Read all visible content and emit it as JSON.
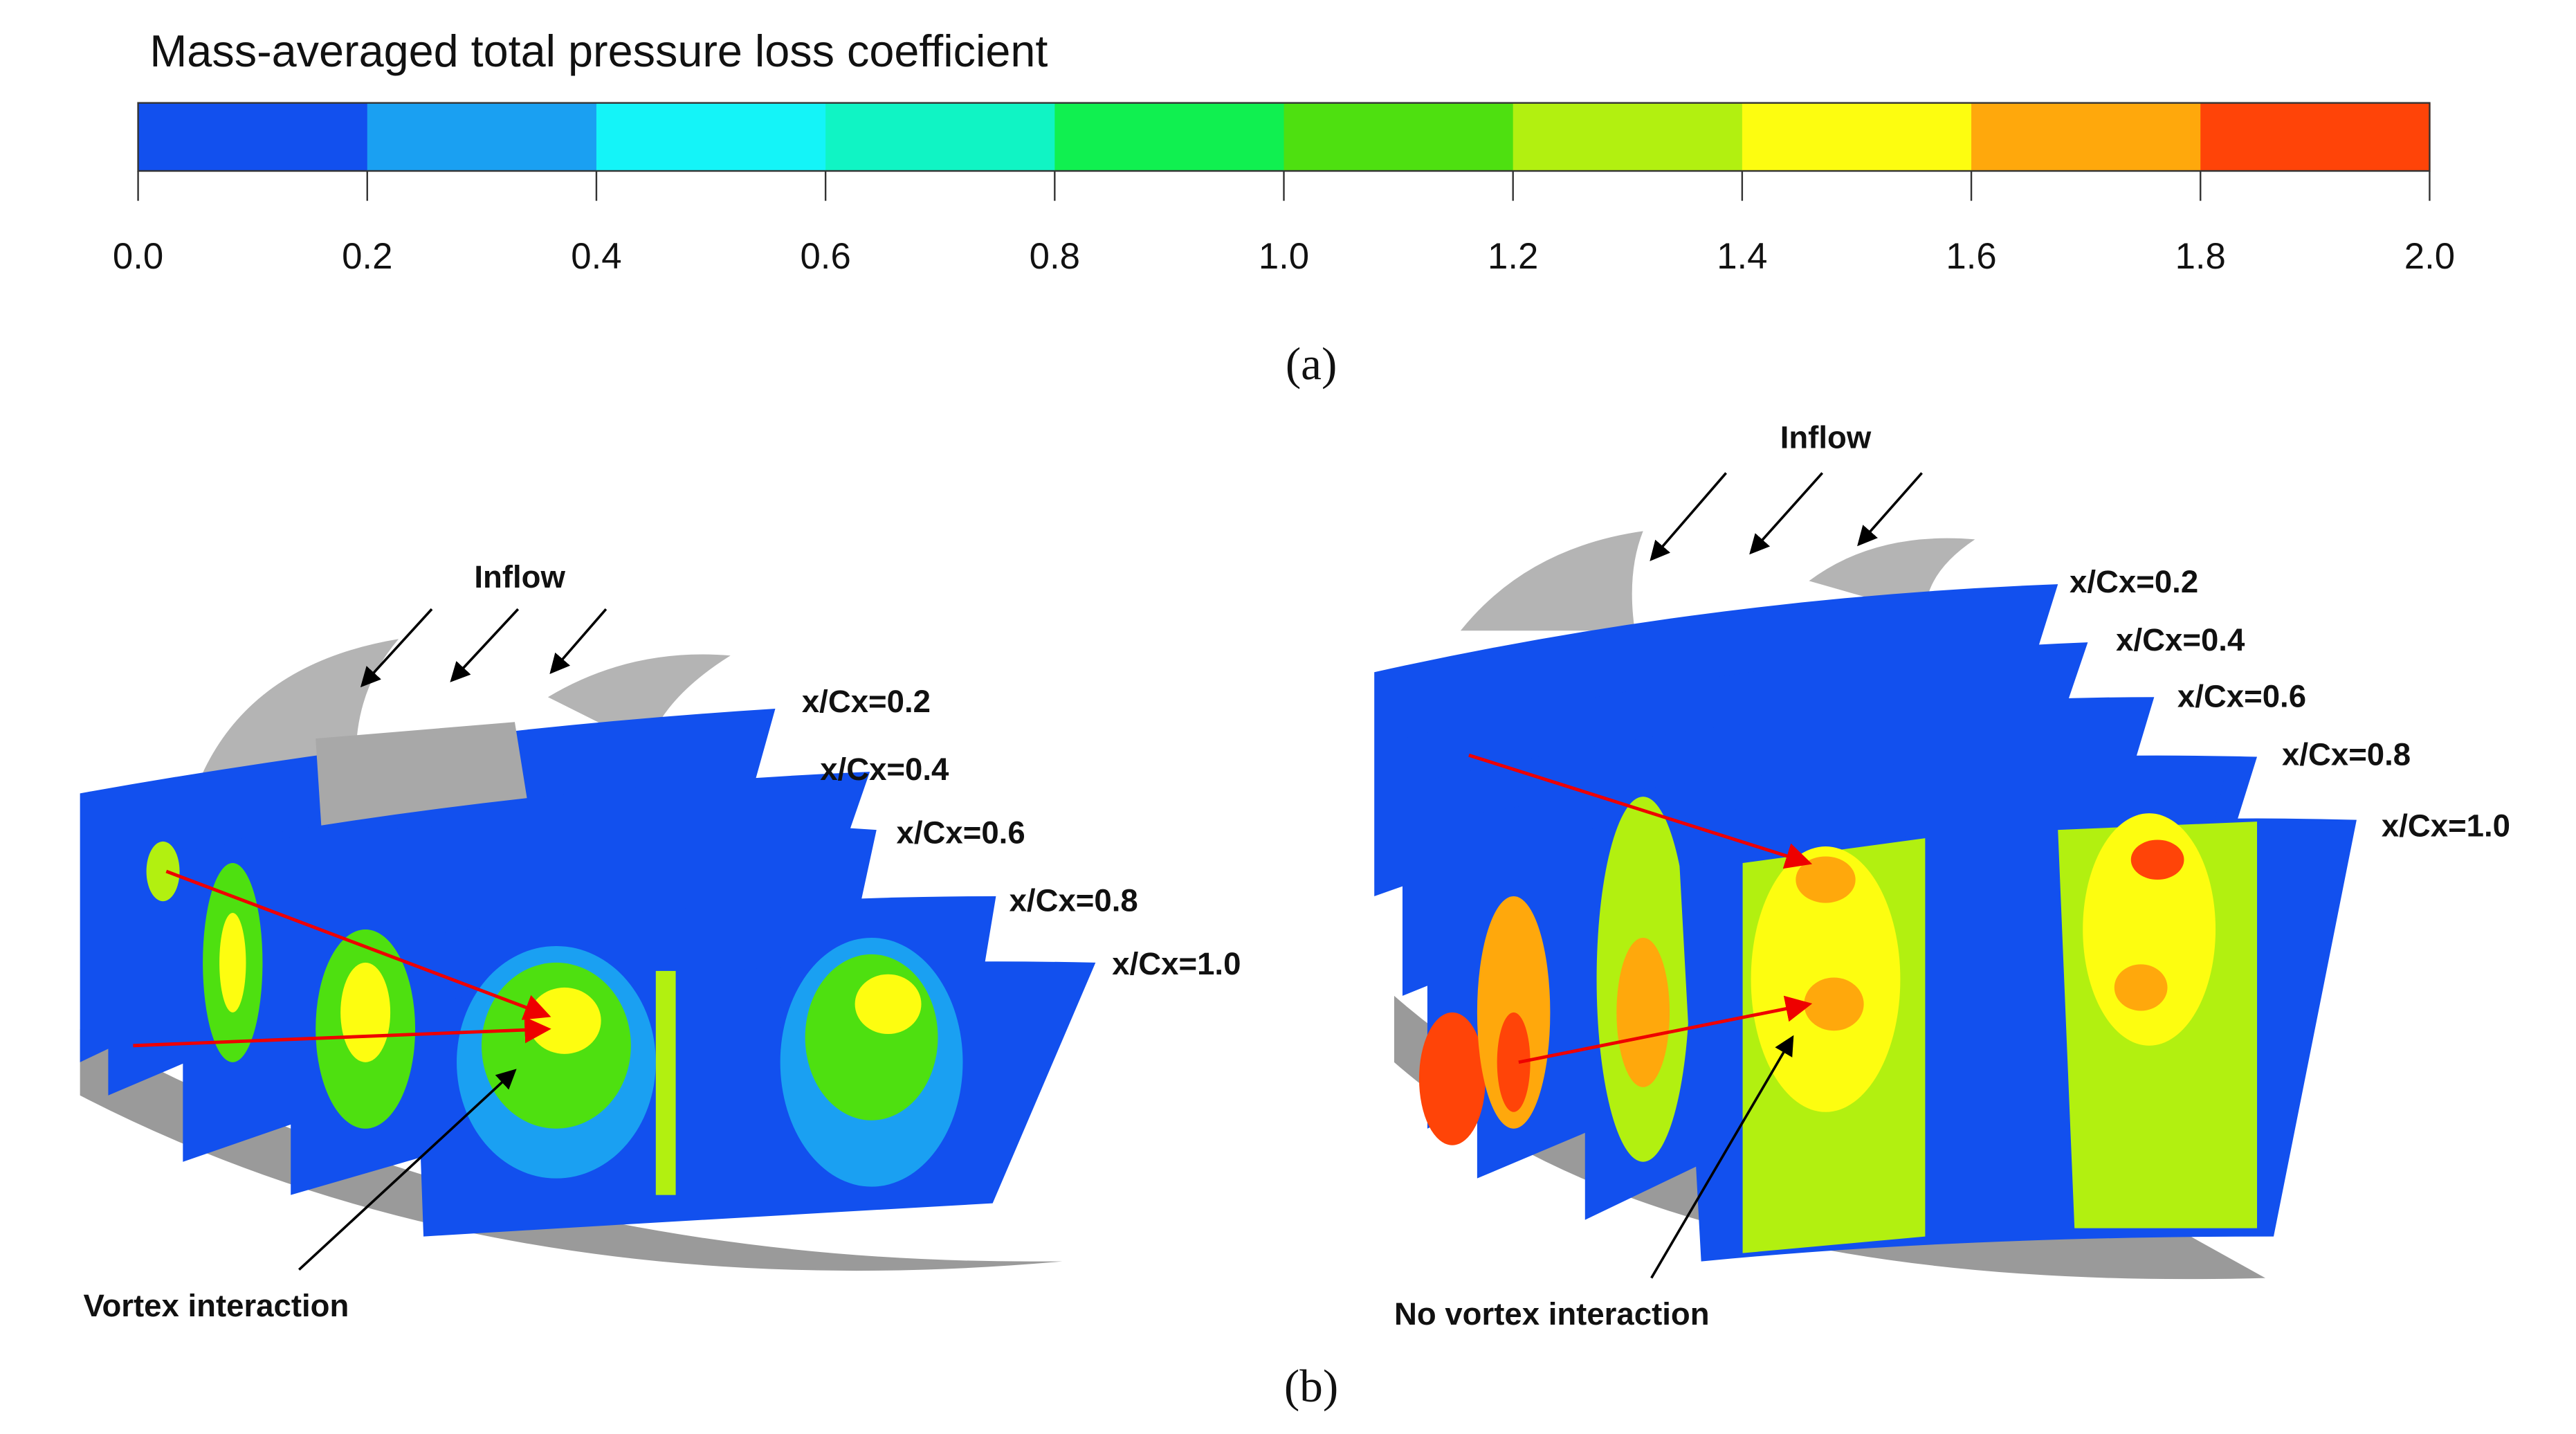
{
  "colorbar": {
    "title": "Mass-averaged total pressure loss coefficient",
    "lim": [
      0,
      2
    ],
    "ticks": [
      {
        "value": 0,
        "label": "0.0"
      },
      {
        "value": 0.2,
        "label": "0.2"
      },
      {
        "value": 0.4,
        "label": "0.4"
      },
      {
        "value": 0.6,
        "label": "0.6"
      },
      {
        "value": 0.8,
        "label": "0.8"
      },
      {
        "value": 1,
        "label": "1.0"
      },
      {
        "value": 1.2,
        "label": "1.2"
      },
      {
        "value": 1.4,
        "label": "1.4"
      },
      {
        "value": 1.6,
        "label": "1.6"
      },
      {
        "value": 1.8,
        "label": "1.8"
      },
      {
        "value": 2,
        "label": "2.0"
      }
    ],
    "colors": [
      "#1250ee",
      "#1aa0f2",
      "#14f4f8",
      "#10f4c4",
      "#10f050",
      "#4ee010",
      "#b2f010",
      "#fdfd10",
      "#ffa80c",
      "#ff4408"
    ]
  },
  "panel_a": {
    "label": "(a)"
  },
  "panel_b": {
    "label": "(b)",
    "left": {
      "inflow": "Inflow",
      "planes": [
        "x/Cx=0.2",
        "x/Cx=0.4",
        "x/Cx=0.6",
        "x/Cx=0.8",
        "x/Cx=1.0"
      ],
      "annotation": "Vortex interaction"
    },
    "right": {
      "inflow": "Inflow",
      "planes": [
        "x/Cx=0.2",
        "x/Cx=0.4",
        "x/Cx=0.6",
        "x/Cx=0.8",
        "x/Cx=1.0"
      ],
      "annotation": "No vortex interaction"
    }
  }
}
